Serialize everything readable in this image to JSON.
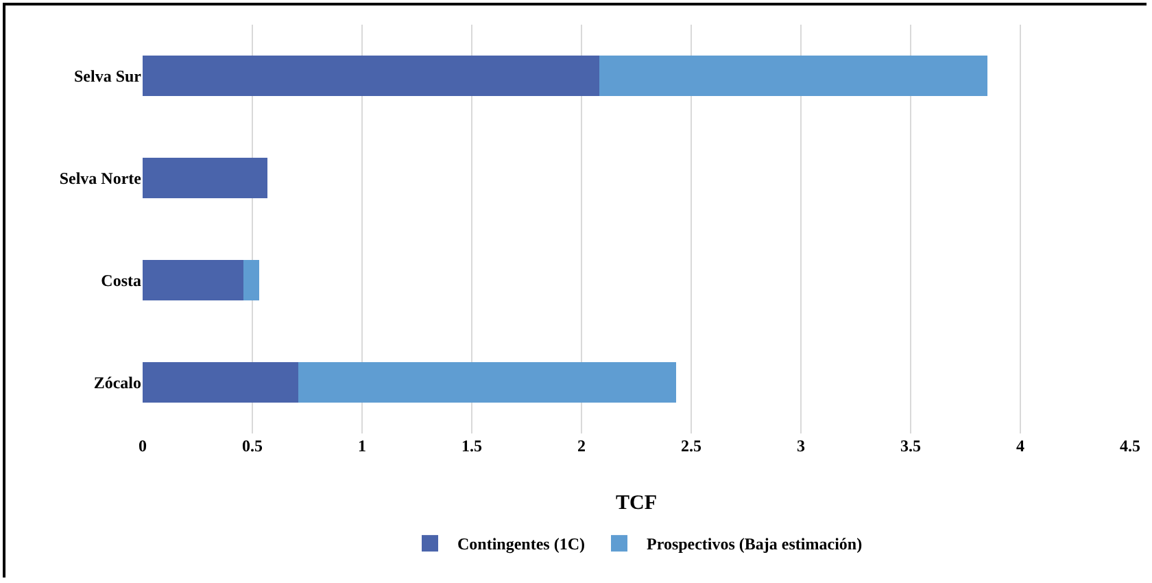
{
  "chart_data": {
    "type": "bar",
    "orientation": "horizontal",
    "stacked": true,
    "xlabel": "TCF",
    "categories": [
      "Selva Sur",
      "Selva Norte",
      "Costa",
      "Zócalo"
    ],
    "series": [
      {
        "name": "Contingentes (1C)",
        "color": "#4a64ab",
        "values": [
          2.08,
          0.57,
          0.46,
          0.71
        ]
      },
      {
        "name": "Prospectivos (Baja estimación)",
        "color": "#5f9dd2",
        "values": [
          1.77,
          0,
          0.07,
          1.72
        ]
      }
    ],
    "xlim": [
      0,
      4.5
    ],
    "xticks": [
      0,
      0.5,
      1,
      1.5,
      2,
      2.5,
      3,
      3.5,
      4,
      4.5
    ],
    "grid": "x",
    "legend": "bottom"
  }
}
